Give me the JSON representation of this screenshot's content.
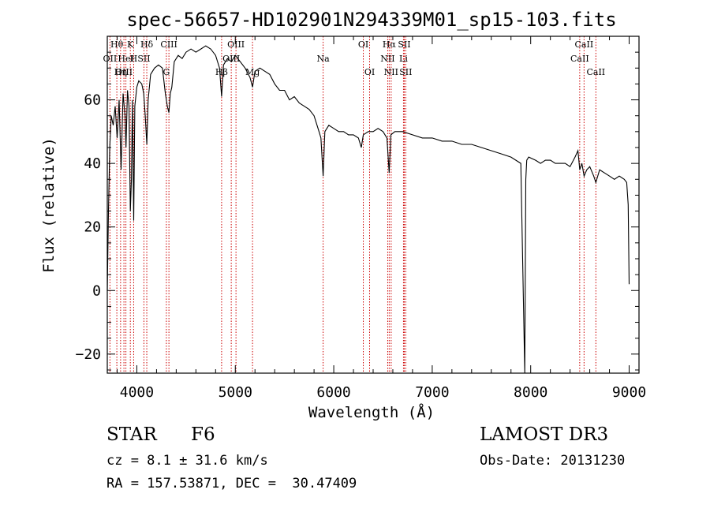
{
  "chart_data": {
    "type": "line",
    "title": "spec-56657-HD102901N294339M01_sp15-103.fits",
    "xlabel": "Wavelength (Å)",
    "ylabel": "Flux (relative)",
    "xlim": [
      3700,
      9100
    ],
    "ylim": [
      -26,
      80
    ],
    "xticks": [
      4000,
      5000,
      6000,
      7000,
      8000,
      9000
    ],
    "yticks": [
      -20,
      0,
      20,
      40,
      60
    ],
    "series": [
      {
        "name": "spectrum",
        "x": [
          3700,
          3712,
          3725,
          3740,
          3760,
          3780,
          3800,
          3820,
          3840,
          3860,
          3880,
          3890,
          3905,
          3920,
          3934,
          3945,
          3955,
          3968,
          3980,
          4000,
          4020,
          4050,
          4070,
          4085,
          4101,
          4115,
          4140,
          4180,
          4220,
          4260,
          4290,
          4310,
          4326,
          4340,
          4355,
          4380,
          4420,
          4460,
          4500,
          4550,
          4600,
          4650,
          4700,
          4750,
          4800,
          4840,
          4861,
          4880,
          4920,
          4960,
          5000,
          5050,
          5100,
          5150,
          5175,
          5200,
          5250,
          5300,
          5350,
          5400,
          5450,
          5500,
          5550,
          5600,
          5650,
          5700,
          5750,
          5800,
          5850,
          5870,
          5892,
          5910,
          5950,
          6000,
          6050,
          6100,
          6150,
          6200,
          6250,
          6280,
          6300,
          6350,
          6400,
          6450,
          6500,
          6540,
          6563,
          6580,
          6620,
          6700,
          6800,
          6900,
          7000,
          7100,
          7200,
          7300,
          7400,
          7500,
          7600,
          7700,
          7800,
          7900,
          7940,
          7950,
          7960,
          7980,
          8050,
          8100,
          8150,
          8200,
          8250,
          8300,
          8350,
          8400,
          8450,
          8480,
          8498,
          8520,
          8542,
          8570,
          8600,
          8640,
          8662,
          8700,
          8750,
          8800,
          8850,
          8900,
          8950,
          8975,
          8990,
          9000
        ],
        "y": [
          0,
          25,
          45,
          55,
          52,
          58,
          48,
          60,
          38,
          62,
          55,
          45,
          63,
          58,
          25,
          35,
          60,
          22,
          58,
          64,
          66,
          65,
          62,
          55,
          46,
          60,
          68,
          70,
          71,
          70,
          62,
          58,
          56,
          62,
          64,
          72,
          74,
          73,
          75,
          76,
          75,
          76,
          77,
          76,
          74,
          70,
          61,
          71,
          73,
          72,
          74,
          72,
          70,
          67,
          64,
          69,
          70,
          69,
          68,
          65,
          63,
          63,
          60,
          61,
          59,
          58,
          57,
          55,
          50,
          48,
          36,
          50,
          52,
          51,
          50,
          50,
          49,
          49,
          48,
          45,
          49,
          50,
          50,
          51,
          50,
          48,
          37,
          49,
          50,
          50,
          49,
          48,
          48,
          47,
          47,
          46,
          46,
          45,
          44,
          43,
          42,
          40,
          -26,
          35,
          41,
          42,
          41,
          40,
          41,
          41,
          40,
          40,
          40,
          39,
          42,
          44,
          38,
          40,
          36,
          38,
          39,
          36,
          34,
          38,
          37,
          36,
          35,
          36,
          35,
          34,
          27,
          2
        ]
      }
    ],
    "line_markers": [
      {
        "label": "Hθ",
        "x": 3797,
        "row": 0
      },
      {
        "label": "K",
        "x": 3934,
        "row": 0
      },
      {
        "label": "Hδ",
        "x": 4101,
        "row": 0
      },
      {
        "label": "OII",
        "x": 3727,
        "row": 1
      },
      {
        "label": "HeI",
        "x": 3889,
        "row": 1
      },
      {
        "label": "H",
        "x": 3968,
        "row": 1
      },
      {
        "label": "OIII",
        "x": 3869,
        "row": 2
      },
      {
        "label": "Hη",
        "x": 3835,
        "row": 2
      },
      {
        "label": "SII",
        "x": 4072,
        "row": 1
      },
      {
        "label": "CIII",
        "x": 4326,
        "row": 0
      },
      {
        "label": "G",
        "x": 4300,
        "row": 2
      },
      {
        "label": "OIII",
        "x": 5007,
        "row": 0
      },
      {
        "label": "OIII",
        "x": 4959,
        "row": 1
      },
      {
        "label": "Hβ",
        "x": 4861,
        "row": 2
      },
      {
        "label": "Mg",
        "x": 5175,
        "row": 2
      },
      {
        "label": "Na",
        "x": 5892,
        "row": 1
      },
      {
        "label": "OI",
        "x": 6300,
        "row": 0
      },
      {
        "label": "OI",
        "x": 6364,
        "row": 2
      },
      {
        "label": "Hα",
        "x": 6563,
        "row": 0
      },
      {
        "label": "SII",
        "x": 6716,
        "row": 0
      },
      {
        "label": "NII",
        "x": 6548,
        "row": 1
      },
      {
        "label": "Li",
        "x": 6708,
        "row": 1
      },
      {
        "label": "NII",
        "x": 6583,
        "row": 2
      },
      {
        "label": "SII",
        "x": 6731,
        "row": 2
      },
      {
        "label": "CaII",
        "x": 8542,
        "row": 0
      },
      {
        "label": "CaII",
        "x": 8498,
        "row": 1
      },
      {
        "label": "CaII",
        "x": 8662,
        "row": 2
      }
    ]
  },
  "info": {
    "class_label": "STAR",
    "subclass": "F6",
    "survey": "LAMOST DR3",
    "cz": "cz = 8.1 ± 31.6 km/s",
    "obs_date": "Obs-Date: 20131230",
    "coords": "RA = 157.53871, DEC =  30.47409"
  },
  "colors": {
    "spectrum": "#000000",
    "marker_line": "#cc0000"
  }
}
